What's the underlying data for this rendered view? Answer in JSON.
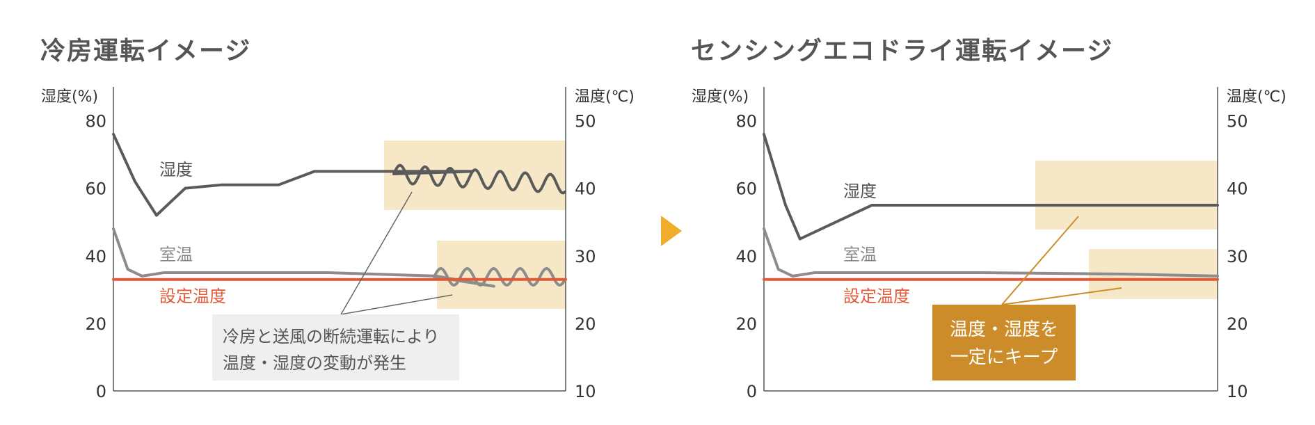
{
  "panels": {
    "left": {
      "title": "冷房運転イメージ"
    },
    "right": {
      "title": "センシングエコドライ運転イメージ"
    }
  },
  "colors": {
    "humidity_line": "#5a5a5a",
    "room_temp_line": "#8c8c8c",
    "set_temp_line": "#e05a3a",
    "highlight_box": "#f6e8c6",
    "note_box_left": "#efefef",
    "note_box_right": "#cc8c2a",
    "arrow": "#f0ac2a"
  },
  "chart_data": [
    {
      "type": "line",
      "title": "冷房運転イメージ",
      "ylabel_left": "湿度(%)",
      "ylabel_right": "温度(℃)",
      "left_axis": {
        "ticks": [
          "0",
          "20",
          "40",
          "60",
          "80"
        ],
        "range": [
          0,
          90
        ]
      },
      "right_axis": {
        "ticks": [
          "10",
          "20",
          "30",
          "40",
          "50"
        ],
        "range": [
          10,
          55
        ]
      },
      "series": [
        {
          "name": "湿度",
          "axis": "left",
          "x": [
            0,
            3,
            6,
            10,
            15,
            23,
            28,
            35,
            40,
            50,
            60,
            63
          ],
          "y": [
            76,
            62,
            52,
            60,
            61,
            61,
            65,
            65,
            65,
            65,
            65,
            62
          ]
        },
        {
          "name": "室温",
          "axis": "right",
          "x": [
            0,
            2,
            4,
            7,
            12,
            30,
            45,
            53,
            58,
            63
          ],
          "y": [
            34,
            28,
            27,
            27.5,
            27.5,
            27.5,
            27,
            25.5,
            26,
            26
          ]
        },
        {
          "name": "設定温度",
          "axis": "right",
          "x": [
            0,
            63
          ],
          "y": [
            26.5,
            26.5
          ]
        }
      ],
      "annotation": [
        "冷房と送風の断続運転により",
        "温度・湿度の変動が発生"
      ]
    },
    {
      "type": "line",
      "title": "センシングエコドライ運転イメージ",
      "ylabel_left": "湿度(%)",
      "ylabel_right": "温度(℃)",
      "left_axis": {
        "ticks": [
          "0",
          "20",
          "40",
          "60",
          "80"
        ],
        "range": [
          0,
          90
        ]
      },
      "right_axis": {
        "ticks": [
          "10",
          "20",
          "30",
          "40",
          "50"
        ],
        "range": [
          10,
          55
        ]
      },
      "series": [
        {
          "name": "湿度",
          "axis": "left",
          "x": [
            0,
            3,
            5,
            10,
            15,
            25,
            45,
            63
          ],
          "y": [
            76,
            55,
            45,
            50,
            55,
            55,
            55,
            55
          ]
        },
        {
          "name": "室温",
          "axis": "right",
          "x": [
            0,
            2,
            4,
            7,
            12,
            30,
            50,
            63
          ],
          "y": [
            34,
            28,
            27,
            27.5,
            27.5,
            27.5,
            27.3,
            27
          ]
        },
        {
          "name": "設定温度",
          "axis": "right",
          "x": [
            0,
            63
          ],
          "y": [
            26.5,
            26.5
          ]
        }
      ],
      "annotation": [
        "温度・湿度を",
        "一定にキープ"
      ]
    }
  ]
}
